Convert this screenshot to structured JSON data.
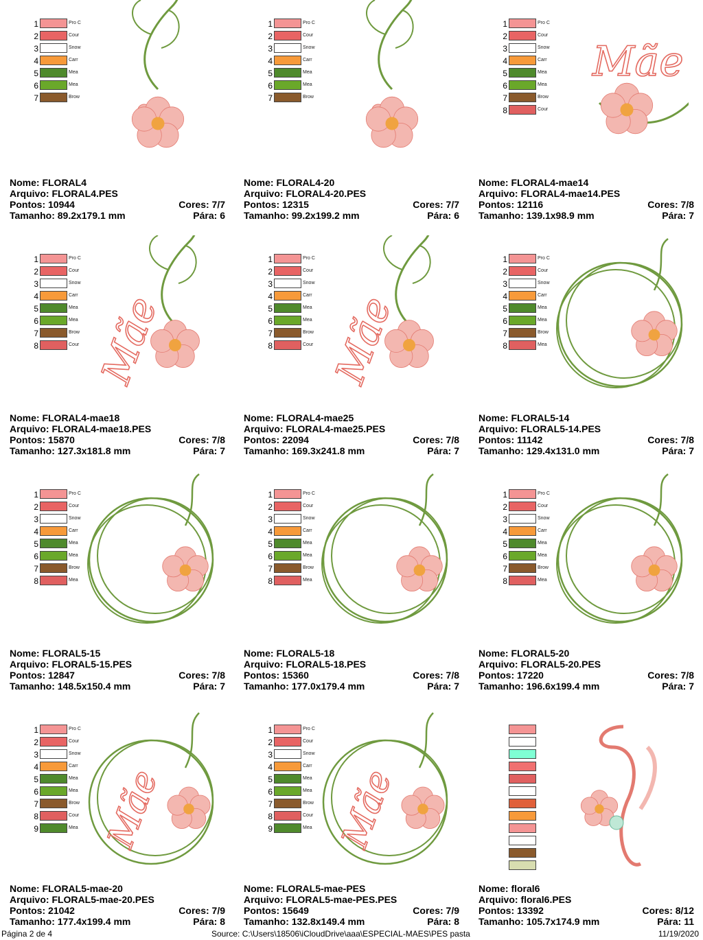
{
  "cards": [
    {
      "name_line": "Nome: FLORAL4",
      "file_line": "Arquivo: FLORAL4.PES",
      "points_line": "Pontos: 10944",
      "colors_line": "Cores: 7/7",
      "size_line": "Tamanho: 89.2x179.1 mm",
      "stops_line": "Pára: 6",
      "art": "floral",
      "threads": [
        "Pro C",
        "Cour",
        "Snow",
        "Carr",
        "Mea",
        "Mea",
        "Brow"
      ]
    },
    {
      "name_line": "Nome: FLORAL4-20",
      "file_line": "Arquivo: FLORAL4-20.PES",
      "points_line": "Pontos: 12315",
      "colors_line": "Cores: 7/7",
      "size_line": "Tamanho: 99.2x199.2 mm",
      "stops_line": "Pára: 6",
      "art": "floral",
      "threads": [
        "Pro C",
        "Cour",
        "Snow",
        "Carr",
        "Mea",
        "Mea",
        "Brow"
      ]
    },
    {
      "name_line": "Nome: FLORAL4-mae14",
      "file_line": "Arquivo: FLORAL4-mae14.PES",
      "points_line": "Pontos: 12116",
      "colors_line": "Cores: 7/8",
      "size_line": "Tamanho: 139.1x98.9 mm",
      "stops_line": "Pára: 7",
      "art": "mae-horizontal",
      "threads": [
        "Pro C",
        "Cour",
        "Snow",
        "Carr",
        "Mea",
        "Mea",
        "Brow",
        "Cour"
      ]
    },
    {
      "name_line": "Nome: FLORAL4-mae18",
      "file_line": "Arquivo: FLORAL4-mae18.PES",
      "points_line": "Pontos: 15870",
      "colors_line": "Cores: 7/8",
      "size_line": "Tamanho: 127.3x181.8 mm",
      "stops_line": "Pára: 7",
      "art": "mae-vertical",
      "threads": [
        "Pro C",
        "Cour",
        "Snow",
        "Carr",
        "Mea",
        "Mea",
        "Brow",
        "Cour"
      ]
    },
    {
      "name_line": "Nome: FLORAL4-mae25",
      "file_line": "Arquivo: FLORAL4-mae25.PES",
      "points_line": "Pontos: 22094",
      "colors_line": "Cores: 7/8",
      "size_line": "Tamanho: 169.3x241.8 mm",
      "stops_line": "Pára: 7",
      "art": "mae-vertical",
      "threads": [
        "Pro C",
        "Cour",
        "Snow",
        "Carr",
        "Mea",
        "Mea",
        "Brow",
        "Cour"
      ]
    },
    {
      "name_line": "Nome: FLORAL5-14",
      "file_line": "Arquivo: FLORAL5-14.PES",
      "points_line": "Pontos: 11142",
      "colors_line": "Cores: 7/8",
      "size_line": "Tamanho: 129.4x131.0 mm",
      "stops_line": "Pára: 7",
      "art": "ring",
      "threads": [
        "Pro C",
        "Cour",
        "Snow",
        "Carr",
        "Mea",
        "Mea",
        "Brow",
        "Mea"
      ]
    },
    {
      "name_line": "Nome: FLORAL5-15",
      "file_line": "Arquivo: FLORAL5-15.PES",
      "points_line": "Pontos: 12847",
      "colors_line": "Cores: 7/8",
      "size_line": "Tamanho: 148.5x150.4 mm",
      "stops_line": "Pára: 7",
      "art": "ring",
      "threads": [
        "Pro C",
        "Cour",
        "Snow",
        "Carr",
        "Mea",
        "Mea",
        "Brow",
        "Mea"
      ]
    },
    {
      "name_line": "Nome: FLORAL5-18",
      "file_line": "Arquivo: FLORAL5-18.PES",
      "points_line": "Pontos: 15360",
      "colors_line": "Cores: 7/8",
      "size_line": "Tamanho: 177.0x179.4 mm",
      "stops_line": "Pára: 7",
      "art": "ring",
      "threads": [
        "Pro C",
        "Cour",
        "Snow",
        "Carr",
        "Mea",
        "Mea",
        "Brow",
        "Mea"
      ]
    },
    {
      "name_line": "Nome: FLORAL5-20",
      "file_line": "Arquivo: FLORAL5-20.PES",
      "points_line": "Pontos: 17220",
      "colors_line": "Cores: 7/8",
      "size_line": "Tamanho: 196.6x199.4 mm",
      "stops_line": "Pára: 7",
      "art": "ring",
      "threads": [
        "Pro C",
        "Cour",
        "Snow",
        "Carr",
        "Mea",
        "Mea",
        "Brow",
        "Mea"
      ]
    },
    {
      "name_line": "Nome: FLORAL5-mae-20",
      "file_line": "Arquivo: FLORAL5-mae-20.PES",
      "points_line": "Pontos: 21042",
      "colors_line": "Cores: 7/9",
      "size_line": "Tamanho: 177.4x199.4 mm",
      "stops_line": "Pára: 8",
      "art": "ring-mae",
      "threads": [
        "Pro C",
        "Cour",
        "Snow",
        "Carr",
        "Mea",
        "Mea",
        "Brow",
        "Cour",
        "Mea"
      ]
    },
    {
      "name_line": "Nome: FLORAL5-mae-PES",
      "file_line": "Arquivo: FLORAL5-mae-PES.PES",
      "points_line": "Pontos: 15649",
      "colors_line": "Cores: 7/9",
      "size_line": "Tamanho: 132.8x149.4 mm",
      "stops_line": "Pára: 8",
      "art": "ring-mae",
      "threads": [
        "Pro C",
        "Cour",
        "Snow",
        "Carr",
        "Mea",
        "Mea",
        "Brow",
        "Cour",
        "Mea"
      ]
    },
    {
      "name_line": "Nome: floral6",
      "file_line": "Arquivo: floral6.PES",
      "points_line": "Pontos: 13392",
      "colors_line": "Cores: 8/12",
      "size_line": "Tamanho: 105.7x174.9 mm",
      "stops_line": "Pára: 11",
      "art": "monogram",
      "threads": []
    }
  ],
  "palette_colors": [
    "#f49494",
    "#e86464",
    "#ffffff",
    "#f79a3a",
    "#4f8a2c",
    "#6aa82a",
    "#8a5a2c",
    "#e06060",
    "#4f8a2c"
  ],
  "floral6_colors": [
    "#f49494",
    "#ffffff",
    "#7fffd4",
    "#f07070",
    "#e06060",
    "#ffffff",
    "#e0603a",
    "#f79a3a",
    "#f49494",
    "#ffffff",
    "#8a5a2c",
    "#d8ddb0"
  ],
  "art_colors": {
    "pink": "#f3b7b0",
    "pink_dark": "#e37a70",
    "green": "#6f9a3f",
    "orange": "#f0a340",
    "script": "#e46a60"
  },
  "mae_text": "Mãe",
  "footer": {
    "page": "Página 2 de 4",
    "source": "Source:  C:\\Users\\18506\\iCloudDrive\\aaa\\ESPECIAL-MAES\\PES pasta",
    "date": "11/19/2020"
  }
}
